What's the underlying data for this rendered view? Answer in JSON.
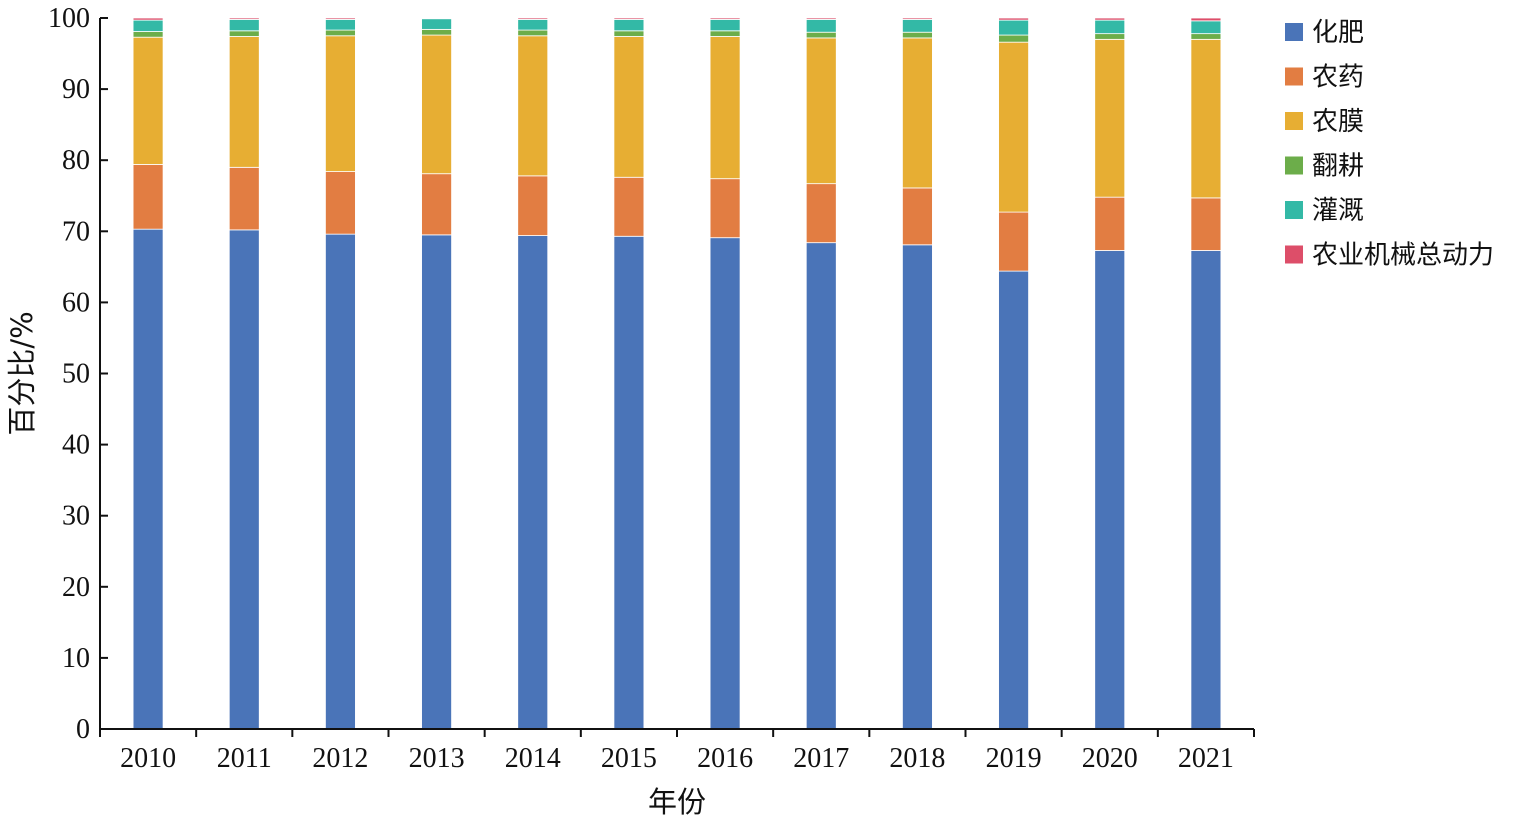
{
  "chart_data": {
    "type": "bar",
    "stacked": true,
    "title": "",
    "xlabel": "年份",
    "ylabel": "百分比/%",
    "ylim": [
      0,
      100
    ],
    "yticks": [
      0,
      10,
      20,
      30,
      40,
      50,
      60,
      70,
      80,
      90,
      100
    ],
    "grid": false,
    "legend_position": "right",
    "categories": [
      "2010",
      "2011",
      "2012",
      "2013",
      "2014",
      "2015",
      "2016",
      "2017",
      "2018",
      "2019",
      "2020",
      "2021"
    ],
    "series": [
      {
        "name": "化肥",
        "color": "#4a74b8",
        "values": [
          70.3,
          70.2,
          69.6,
          69.5,
          69.4,
          69.3,
          69.1,
          68.4,
          68.1,
          64.4,
          67.3,
          67.3
        ]
      },
      {
        "name": "农药",
        "color": "#e27d42",
        "values": [
          9.1,
          8.8,
          8.8,
          8.6,
          8.4,
          8.3,
          8.3,
          8.3,
          8.0,
          8.3,
          7.5,
          7.4
        ]
      },
      {
        "name": "农膜",
        "color": "#e7ae33",
        "values": [
          17.9,
          18.4,
          19.1,
          19.5,
          19.7,
          19.8,
          20.0,
          20.5,
          21.1,
          23.9,
          22.2,
          22.3
        ]
      },
      {
        "name": "翻耕",
        "color": "#6cad4a",
        "values": [
          0.8,
          0.8,
          0.8,
          0.8,
          0.8,
          0.8,
          0.8,
          0.8,
          0.8,
          1.0,
          0.8,
          0.8
        ]
      },
      {
        "name": "灌溉",
        "color": "#33b9a6",
        "values": [
          1.6,
          1.6,
          1.5,
          1.5,
          1.5,
          1.6,
          1.6,
          1.8,
          1.8,
          2.1,
          1.9,
          1.8
        ]
      },
      {
        "name": "农业机械总动力",
        "color": "#dd4e69",
        "values": [
          0.3,
          0.2,
          0.2,
          0.1,
          0.2,
          0.2,
          0.2,
          0.2,
          0.2,
          0.3,
          0.3,
          0.4
        ]
      }
    ]
  }
}
